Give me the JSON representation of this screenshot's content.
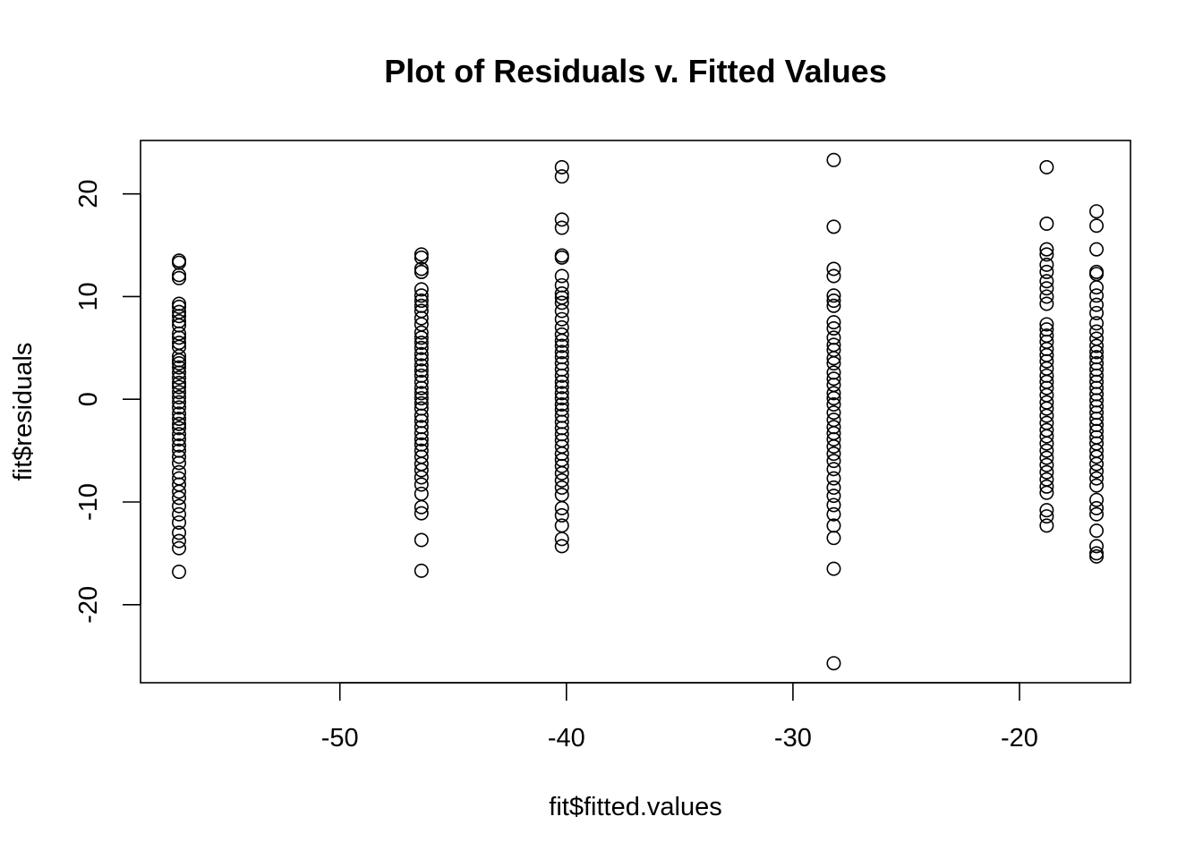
{
  "chart_data": {
    "type": "scatter",
    "title": "Plot of Residuals v. Fitted Values",
    "xlabel": "fit$fitted.values",
    "ylabel": "fit$residuals",
    "xlim": [
      -58.8,
      -15.1
    ],
    "ylim": [
      -27.6,
      25.2
    ],
    "xticks": [
      -50,
      -40,
      -30,
      -20
    ],
    "yticks": [
      -20,
      -10,
      0,
      10,
      20
    ],
    "grid": false,
    "legend": "none",
    "marker": "open-circle",
    "groups": [
      {
        "x": -57.1,
        "residuals": [
          13.5,
          13.3,
          12.1,
          11.8,
          9.3,
          9.0,
          8.5,
          8.1,
          7.6,
          7.2,
          6.4,
          6.0,
          5.5,
          5.1,
          4.2,
          3.8,
          3.5,
          3.1,
          2.6,
          2.1,
          1.6,
          1.2,
          0.7,
          0.2,
          -0.3,
          -0.8,
          -1.4,
          -1.9,
          -2.4,
          -2.8,
          -3.4,
          -3.9,
          -4.5,
          -5.0,
          -5.6,
          -6.2,
          -7.1,
          -7.7,
          -8.3,
          -9.0,
          -9.6,
          -10.4,
          -11.2,
          -12.0,
          -13.0,
          -13.8,
          -14.5,
          -16.8
        ]
      },
      {
        "x": -46.4,
        "residuals": [
          14.1,
          13.8,
          12.7,
          12.4,
          10.7,
          10.1,
          9.6,
          9.1,
          8.6,
          7.9,
          7.3,
          6.5,
          6.0,
          5.5,
          5.0,
          4.4,
          3.9,
          3.3,
          2.8,
          2.3,
          1.7,
          1.1,
          0.6,
          0.1,
          -0.4,
          -0.9,
          -1.6,
          -2.1,
          -2.7,
          -3.3,
          -3.9,
          -4.4,
          -5.0,
          -5.6,
          -6.3,
          -6.9,
          -7.6,
          -8.3,
          -9.2,
          -10.5,
          -11.1,
          -13.7,
          -16.7
        ]
      },
      {
        "x": -40.2,
        "residuals": [
          22.6,
          21.7,
          17.5,
          16.7,
          14.0,
          13.8,
          12.0,
          11.1,
          10.3,
          9.9,
          9.4,
          8.6,
          7.8,
          7.0,
          6.3,
          5.7,
          5.2,
          4.6,
          4.1,
          3.5,
          2.9,
          2.3,
          1.7,
          1.2,
          0.6,
          0.1,
          -0.5,
          -1.0,
          -1.6,
          -2.2,
          -2.8,
          -3.4,
          -4.0,
          -4.6,
          -5.3,
          -5.9,
          -6.5,
          -7.2,
          -7.9,
          -8.6,
          -9.3,
          -10.6,
          -11.3,
          -12.3,
          -13.6,
          -14.3
        ]
      },
      {
        "x": -28.2,
        "residuals": [
          23.3,
          16.8,
          12.7,
          12.0,
          10.1,
          9.6,
          9.1,
          7.5,
          6.9,
          6.0,
          5.3,
          4.8,
          4.0,
          3.5,
          2.6,
          2.0,
          1.4,
          0.6,
          0.1,
          -0.5,
          -1.3,
          -2.0,
          -2.7,
          -3.3,
          -3.9,
          -4.6,
          -5.3,
          -6.0,
          -6.8,
          -7.7,
          -8.6,
          -9.4,
          -10.3,
          -11.2,
          -12.3,
          -13.5,
          -16.5,
          -25.7
        ]
      },
      {
        "x": -18.8,
        "residuals": [
          22.6,
          17.1,
          14.6,
          14.1,
          13.1,
          12.4,
          11.5,
          10.8,
          10.0,
          9.3,
          7.3,
          6.8,
          6.2,
          5.6,
          4.9,
          4.3,
          3.7,
          3.0,
          2.3,
          1.7,
          1.1,
          0.4,
          -0.3,
          -0.9,
          -1.6,
          -2.3,
          -3.0,
          -3.6,
          -4.3,
          -5.0,
          -5.7,
          -6.4,
          -7.1,
          -7.8,
          -8.5,
          -9.1,
          -10.8,
          -11.4,
          -12.3
        ]
      },
      {
        "x": -16.6,
        "residuals": [
          18.3,
          16.9,
          14.6,
          12.4,
          12.2,
          10.9,
          10.1,
          9.2,
          8.4,
          7.4,
          6.6,
          5.9,
          5.2,
          4.6,
          4.1,
          3.5,
          2.9,
          2.3,
          1.7,
          1.1,
          0.5,
          -0.1,
          -0.7,
          -1.3,
          -1.9,
          -2.5,
          -3.1,
          -3.7,
          -4.3,
          -5.0,
          -5.6,
          -6.3,
          -7.0,
          -7.7,
          -8.4,
          -9.8,
          -10.6,
          -11.2,
          -12.8,
          -14.3,
          -15.0,
          -15.3
        ]
      }
    ]
  }
}
